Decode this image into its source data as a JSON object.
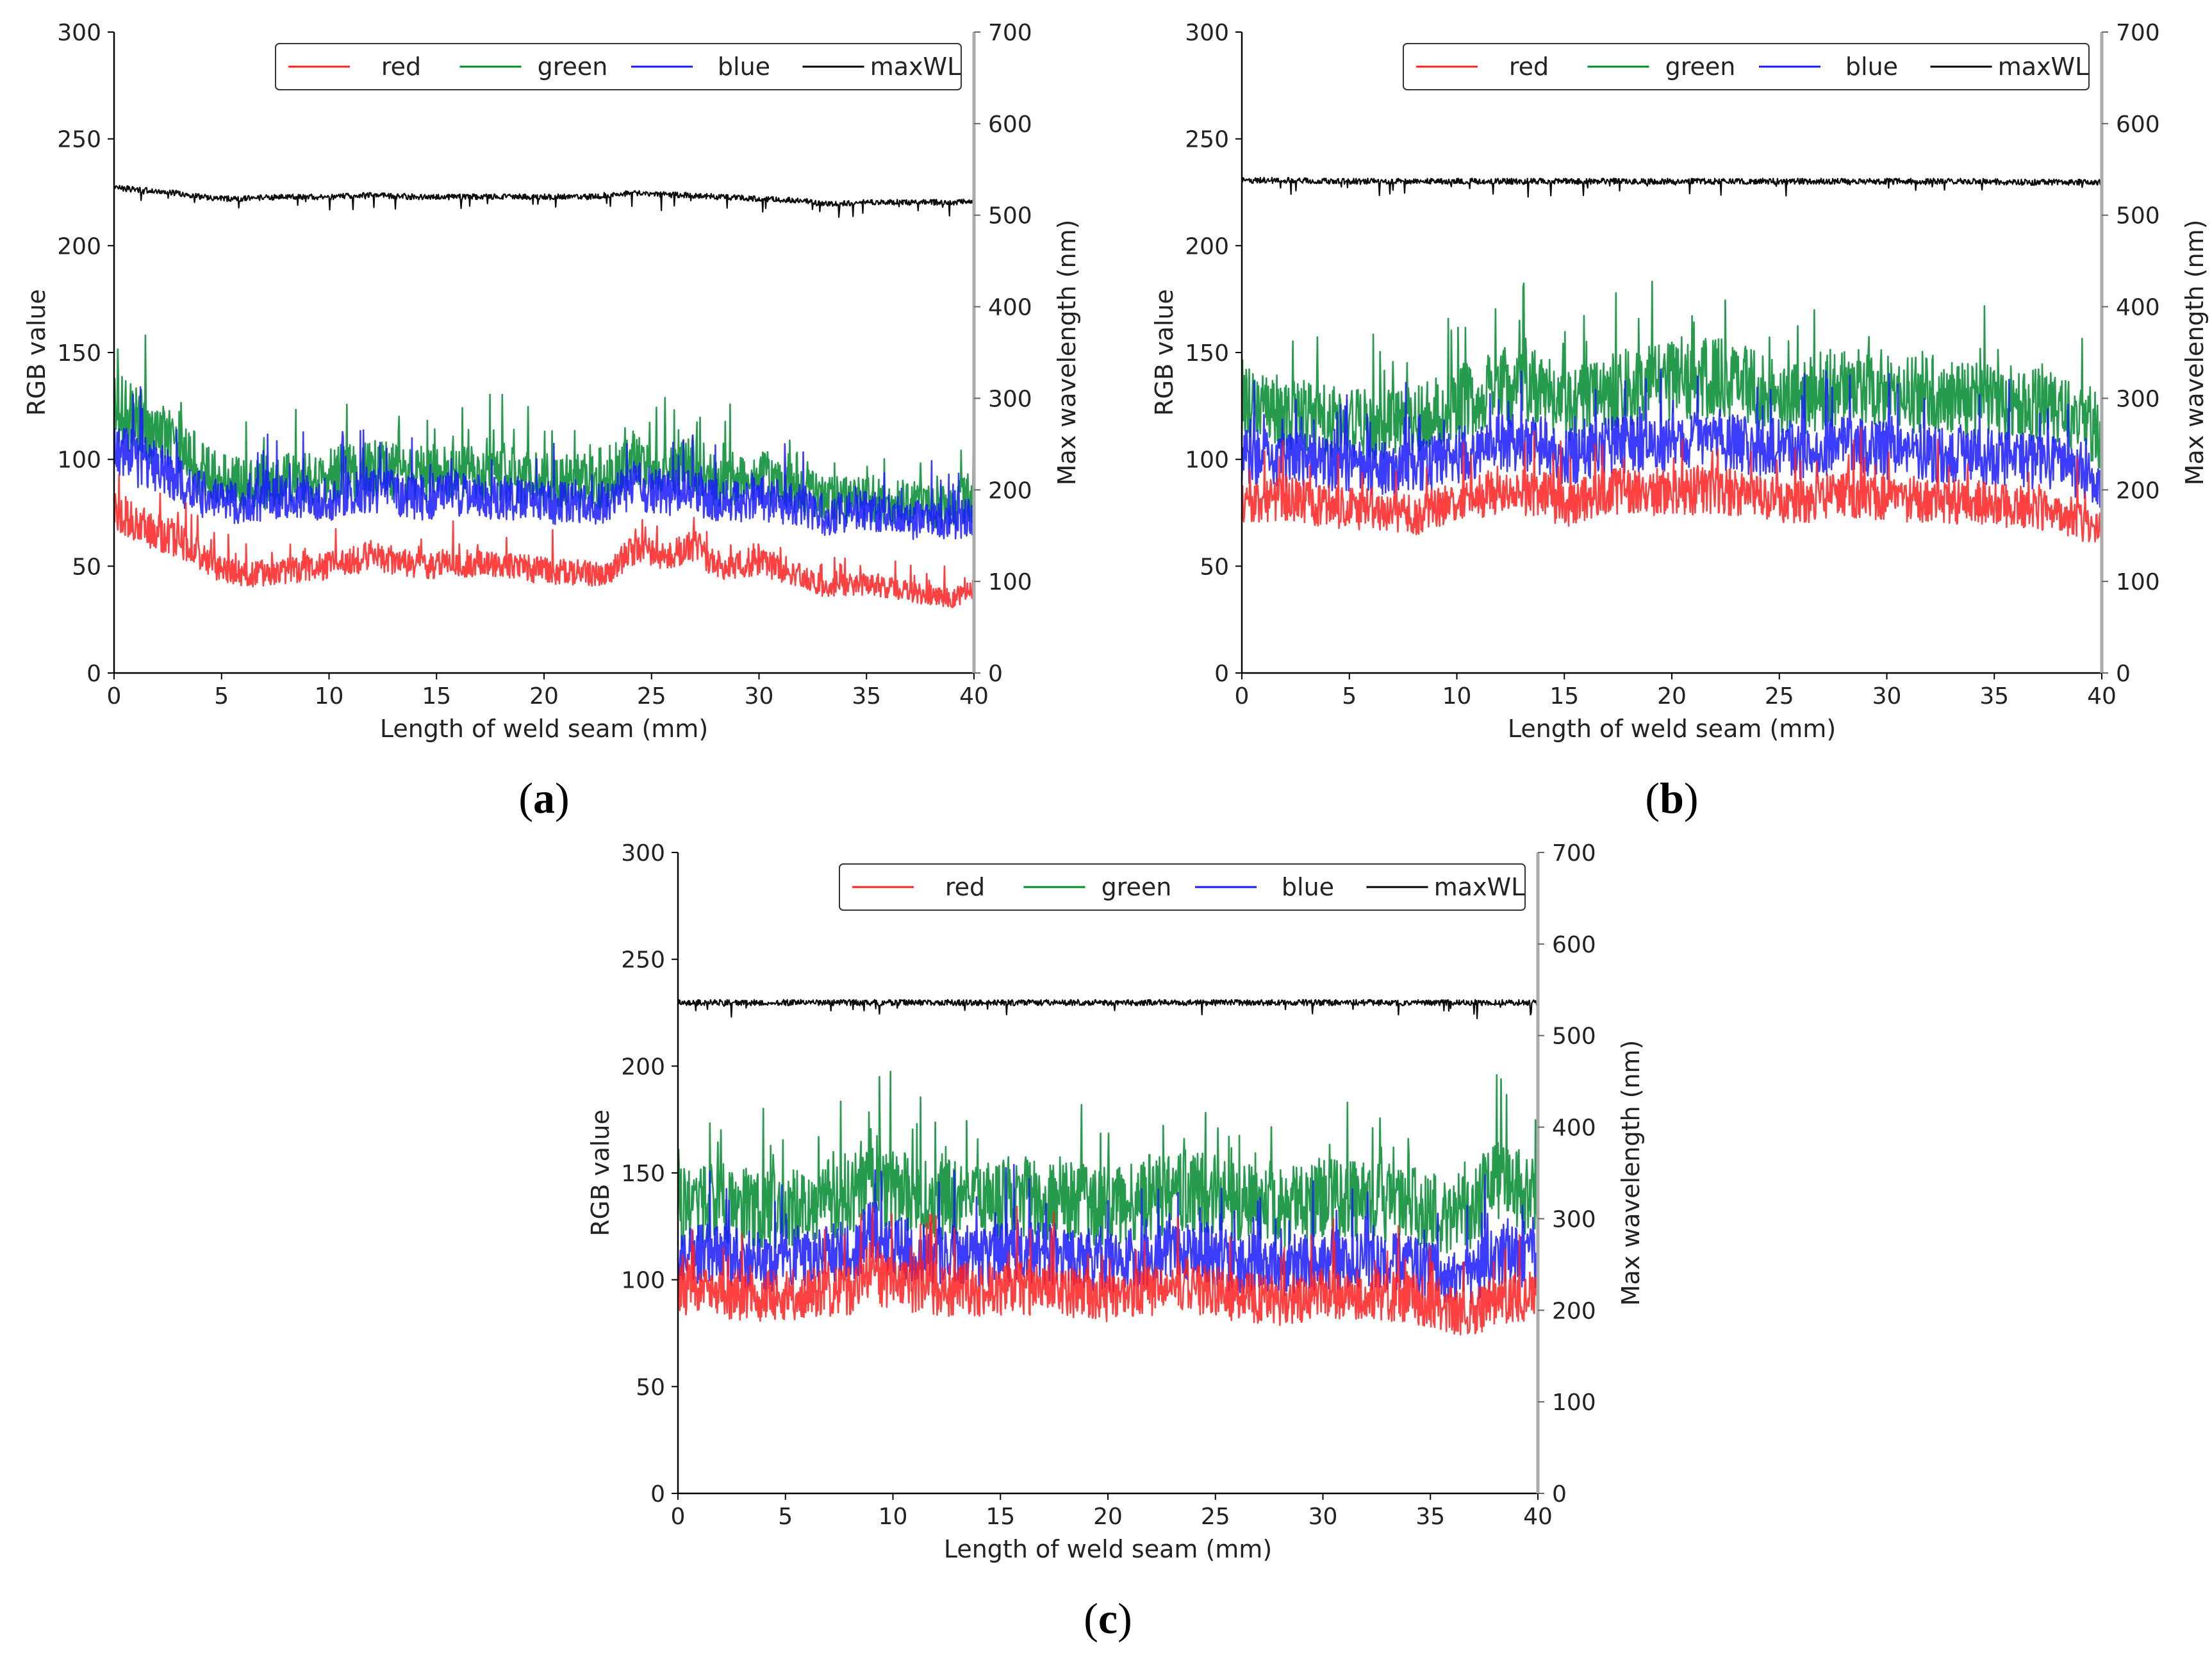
{
  "chart_data": [
    {
      "type": "line",
      "panel": "a",
      "caption": {
        "open": "(",
        "letter": "a",
        "close": ")"
      },
      "xlabel": "Length of weld seam (mm)",
      "ylabel": "RGB value",
      "y2label": "Max wavelength (nm)",
      "xlim": [
        0,
        40
      ],
      "ylim": [
        0,
        300
      ],
      "y2lim": [
        0,
        700
      ],
      "xticks": [
        "0",
        "5",
        "10",
        "15",
        "20",
        "25",
        "30",
        "35",
        "40"
      ],
      "yticks": [
        "0",
        "50",
        "100",
        "150",
        "200",
        "250",
        "300"
      ],
      "y2ticks": [
        "0",
        "100",
        "200",
        "300",
        "400",
        "500",
        "600",
        "700"
      ],
      "legend_position": "top-right",
      "x": [
        0,
        1,
        2,
        3,
        4,
        5,
        6,
        8,
        10,
        12,
        14,
        16,
        18,
        20,
        22,
        23,
        24,
        26,
        27,
        28,
        30,
        32,
        33,
        35,
        37,
        39,
        40
      ],
      "series": [
        {
          "name": "red",
          "color": "#ff2020",
          "values": [
            78,
            70,
            66,
            62,
            55,
            48,
            46,
            48,
            50,
            55,
            50,
            52,
            50,
            48,
            47,
            46,
            58,
            55,
            60,
            50,
            52,
            46,
            40,
            42,
            38,
            35,
            40
          ]
        },
        {
          "name": "green",
          "color": "#008a2e",
          "values": [
            125,
            118,
            112,
            108,
            96,
            90,
            88,
            90,
            92,
            96,
            92,
            94,
            92,
            90,
            90,
            88,
            100,
            96,
            98,
            90,
            92,
            86,
            80,
            82,
            80,
            78,
            82
          ]
        },
        {
          "name": "blue",
          "color": "#1a1aff",
          "values": [
            108,
            100,
            96,
            90,
            84,
            80,
            80,
            82,
            82,
            86,
            82,
            84,
            82,
            80,
            80,
            80,
            88,
            84,
            86,
            80,
            82,
            78,
            74,
            76,
            72,
            70,
            74
          ]
        },
        {
          "name": "maxWL",
          "color": "#000000",
          "axis": "right",
          "values": [
            530,
            528,
            526,
            524,
            520,
            518,
            518,
            520,
            520,
            522,
            520,
            520,
            520,
            520,
            520,
            522,
            524,
            522,
            522,
            520,
            518,
            516,
            512,
            514,
            514,
            514,
            516
          ]
        }
      ]
    },
    {
      "type": "line",
      "panel": "b",
      "caption": {
        "open": "(",
        "letter": "b",
        "close": ")"
      },
      "xlabel": "Length of weld seam (mm)",
      "ylabel": "RGB value",
      "y2label": "Max wavelength (nm)",
      "xlim": [
        0,
        40
      ],
      "ylim": [
        0,
        300
      ],
      "y2lim": [
        0,
        700
      ],
      "xticks": [
        "0",
        "5",
        "10",
        "15",
        "20",
        "25",
        "30",
        "35",
        "40"
      ],
      "yticks": [
        "0",
        "50",
        "100",
        "150",
        "200",
        "250",
        "300"
      ],
      "y2ticks": [
        "0",
        "100",
        "200",
        "300",
        "400",
        "500",
        "600",
        "700"
      ],
      "legend_position": "top-right",
      "x": [
        0,
        2,
        4,
        6,
        8,
        10,
        12,
        14,
        15,
        16,
        18,
        20,
        22,
        23,
        24,
        26,
        28,
        30,
        32,
        34,
        36,
        38,
        40
      ],
      "series": [
        {
          "name": "red",
          "color": "#ff2020",
          "values": [
            80,
            82,
            78,
            76,
            74,
            80,
            86,
            84,
            78,
            82,
            86,
            84,
            86,
            84,
            82,
            80,
            84,
            82,
            80,
            80,
            78,
            76,
            66
          ]
        },
        {
          "name": "green",
          "color": "#008a2e",
          "values": [
            126,
            122,
            118,
            116,
            118,
            126,
            134,
            132,
            124,
            128,
            134,
            136,
            138,
            136,
            132,
            130,
            134,
            132,
            130,
            128,
            126,
            124,
            110
          ]
        },
        {
          "name": "blue",
          "color": "#1a1aff",
          "values": [
            102,
            100,
            98,
            96,
            96,
            102,
            108,
            106,
            100,
            104,
            108,
            108,
            110,
            108,
            106,
            104,
            106,
            104,
            102,
            102,
            100,
            98,
            88
          ]
        },
        {
          "name": "maxWL",
          "color": "#000000",
          "axis": "right",
          "values": [
            538,
            538,
            537,
            537,
            537,
            537,
            537,
            537,
            537,
            537,
            537,
            537,
            537,
            537,
            537,
            537,
            537,
            537,
            537,
            537,
            536,
            536,
            536
          ]
        }
      ]
    },
    {
      "type": "line",
      "panel": "c",
      "caption": {
        "open": "(",
        "letter": "c",
        "close": ")"
      },
      "xlabel": "Length of weld seam (mm)",
      "ylabel": "RGB value",
      "y2label": "Max wavelength (nm)",
      "xlim": [
        0,
        40
      ],
      "ylim": [
        0,
        300
      ],
      "y2lim": [
        0,
        700
      ],
      "xticks": [
        "0",
        "5",
        "10",
        "15",
        "20",
        "25",
        "30",
        "35",
        "40"
      ],
      "yticks": [
        "0",
        "50",
        "100",
        "150",
        "200",
        "250",
        "300"
      ],
      "y2ticks": [
        "0",
        "100",
        "200",
        "300",
        "400",
        "500",
        "600",
        "700"
      ],
      "legend_position": "top-right",
      "x": [
        0,
        2,
        4,
        6,
        8,
        9,
        10,
        12,
        14,
        16,
        18,
        20,
        22,
        24,
        26,
        28,
        30,
        32,
        34,
        36,
        37,
        38,
        40
      ],
      "series": [
        {
          "name": "red",
          "color": "#ff2020",
          "values": [
            96,
            94,
            92,
            94,
            96,
            102,
            98,
            96,
            94,
            96,
            94,
            92,
            94,
            96,
            92,
            90,
            94,
            92,
            92,
            86,
            84,
            90,
            92
          ]
        },
        {
          "name": "green",
          "color": "#008a2e",
          "values": [
            134,
            136,
            132,
            136,
            140,
            150,
            142,
            138,
            136,
            140,
            136,
            134,
            138,
            142,
            136,
            134,
            138,
            136,
            136,
            130,
            134,
            148,
            138
          ]
        },
        {
          "name": "blue",
          "color": "#1a1aff",
          "values": [
            112,
            112,
            108,
            112,
            114,
            122,
            116,
            112,
            110,
            114,
            110,
            108,
            112,
            114,
            108,
            106,
            110,
            108,
            108,
            100,
            102,
            112,
            110
          ]
        },
        {
          "name": "maxWL",
          "color": "#000000",
          "axis": "right",
          "values": [
            536,
            536,
            536,
            536,
            536,
            536,
            536,
            536,
            536,
            536,
            536,
            536,
            536,
            536,
            536,
            536,
            536,
            536,
            536,
            536,
            536,
            536,
            536
          ]
        }
      ]
    }
  ]
}
